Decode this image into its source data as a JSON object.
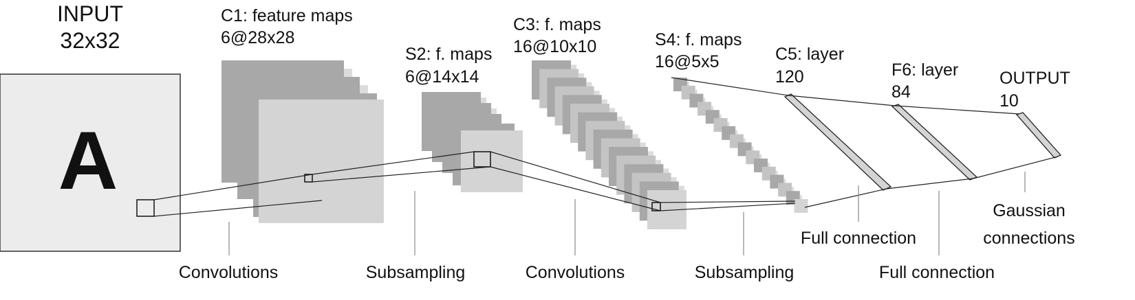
{
  "colors": {
    "input_fill": "#ececec",
    "map_dark": "#a8a8a8",
    "map_mid": "#c4c4c4",
    "map_light": "#dcdcdc",
    "map_front": "#d4d4d4",
    "line": "#222222",
    "text": "#111111"
  },
  "layers": {
    "input": {
      "title": "INPUT",
      "size": "32x32",
      "glyph": "A",
      "glyph_icon": "letter-a-glyph"
    },
    "c1": {
      "title": "C1: feature maps",
      "size": "6@28x28",
      "count": 6
    },
    "s2": {
      "title": "S2:  f. maps",
      "size": "6@14x14",
      "count": 6
    },
    "c3": {
      "title": "C3: f. maps",
      "size": "16@10x10",
      "count": 16
    },
    "s4": {
      "title": "S4: f. maps",
      "size": "16@5x5",
      "count": 16
    },
    "c5": {
      "title": "C5: layer",
      "size": "120"
    },
    "f6": {
      "title": "F6: layer",
      "size": "84"
    },
    "output": {
      "title": "OUTPUT",
      "size": "10"
    }
  },
  "operations": {
    "conv1": "Convolutions",
    "sub1": "Subsampling",
    "conv2": "Convolutions",
    "sub2": "Subsampling",
    "full1": "Full connection",
    "full2": "Full connection",
    "gaussian_line1": "Gaussian",
    "gaussian_line2": "connections"
  }
}
